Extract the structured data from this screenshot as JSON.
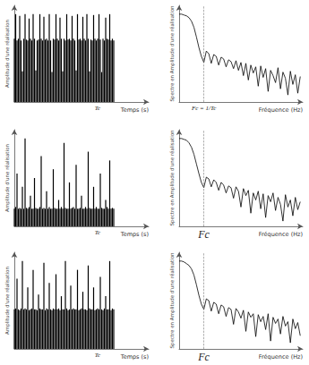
{
  "chart_data": [
    {
      "type": "bar",
      "color": "#000000",
      "xlabel": "Temps (s)",
      "ylabel": "Amplitude d'une réalisation",
      "xlim": [
        0,
        100
      ],
      "ylim": [
        0,
        1.1
      ],
      "xticks": [
        {
          "value": 62,
          "label": "Tc"
        }
      ],
      "tick_labels": "x",
      "grid": false,
      "values": [
        0.72,
        1.0,
        0.7,
        0.72,
        0.98,
        0.7,
        0.35,
        0.72,
        1.0,
        0.71,
        0.7,
        0.95,
        0.72,
        0.7,
        1.0,
        0.72,
        0.36,
        0.7,
        0.71,
        1.0,
        0.72,
        0.7,
        0.97,
        0.71,
        0.72,
        0.7,
        1.0,
        0.7,
        0.34,
        0.72,
        0.71,
        1.0,
        0.72,
        0.7,
        0.96,
        0.72,
        0.35,
        0.72,
        0.7,
        1.0,
        0.71,
        0.72,
        0.7,
        0.98,
        0.72,
        0.7,
        0.36,
        1.0,
        0.71,
        0.72,
        0.7,
        0.97,
        0.72,
        0.7,
        1.0,
        0.72,
        0.35,
        0.71,
        0.7,
        0.99,
        0.72,
        0.7,
        0.72,
        1.0,
        0.71,
        0.34,
        0.72,
        0.7,
        0.96,
        0.72,
        0.71,
        1.0,
        0.7,
        0.72,
        0.7
      ]
    },
    {
      "type": "line",
      "color": "#000000",
      "xlabel": "Fréquence (Hz)",
      "ylabel": "Spectre en Amplitude d'une réalisation",
      "xlim": [
        0,
        50
      ],
      "ylim": [
        0,
        1.1
      ],
      "xticks": [
        {
          "value": 10,
          "label": "Fc = 1/Tc"
        }
      ],
      "tick_labels": "x",
      "grid": false,
      "values": [
        1.0,
        1.0,
        0.99,
        0.98,
        0.96,
        0.92,
        0.85,
        0.74,
        0.62,
        0.52,
        0.45,
        0.58,
        0.55,
        0.44,
        0.54,
        0.52,
        0.42,
        0.51,
        0.49,
        0.4,
        0.48,
        0.46,
        0.38,
        0.47,
        0.36,
        0.45,
        0.3,
        0.44,
        0.25,
        0.42,
        0.33,
        0.4,
        0.18,
        0.41,
        0.28,
        0.38,
        0.12,
        0.36,
        0.3,
        0.22,
        0.39,
        0.15,
        0.34,
        0.27,
        0.08,
        0.35,
        0.2,
        0.31,
        0.1,
        0.29
      ]
    },
    {
      "type": "bar",
      "color": "#000000",
      "xlabel": "Temps (s)",
      "ylabel": "Amplitude d'une réalisation",
      "xlim": [
        0,
        100
      ],
      "ylim": [
        0,
        1.1
      ],
      "xticks": [
        {
          "value": 62,
          "label": "Tc"
        }
      ],
      "tick_labels": "x",
      "grid": false,
      "values": [
        0.2,
        0.22,
        0.6,
        0.2,
        0.21,
        0.2,
        0.45,
        0.2,
        1.0,
        0.21,
        0.2,
        0.22,
        0.35,
        0.2,
        0.2,
        0.55,
        0.21,
        0.2,
        0.2,
        0.22,
        0.8,
        0.2,
        0.21,
        0.2,
        0.4,
        0.2,
        0.22,
        0.2,
        0.2,
        0.65,
        0.21,
        0.2,
        0.2,
        0.3,
        0.2,
        0.22,
        0.2,
        0.95,
        0.21,
        0.2,
        0.2,
        0.5,
        0.2,
        0.21,
        0.22,
        0.2,
        0.7,
        0.2,
        0.2,
        0.21,
        0.35,
        0.2,
        0.2,
        0.22,
        0.2,
        0.85,
        0.21,
        0.2,
        0.2,
        0.45,
        0.2,
        0.22,
        0.2,
        0.2,
        0.6,
        0.21,
        0.2,
        0.2,
        0.3,
        0.22,
        0.2,
        0.75,
        0.2,
        0.21,
        0.2
      ]
    },
    {
      "type": "line",
      "color": "#000000",
      "xlabel": "Fréquence (Hz)",
      "ylabel": "Spectre en Amplitude d'une réalisation",
      "xlim": [
        0,
        50
      ],
      "ylim": [
        0,
        1.1
      ],
      "xticks": [
        {
          "value": 10,
          "label": "Fc"
        }
      ],
      "tick_labels": "x",
      "grid": false,
      "values": [
        1.0,
        1.0,
        0.99,
        0.98,
        0.95,
        0.9,
        0.82,
        0.71,
        0.6,
        0.5,
        0.44,
        0.56,
        0.54,
        0.45,
        0.53,
        0.5,
        0.41,
        0.5,
        0.47,
        0.38,
        0.46,
        0.44,
        0.32,
        0.45,
        0.4,
        0.22,
        0.43,
        0.35,
        0.41,
        0.15,
        0.38,
        0.3,
        0.4,
        0.2,
        0.37,
        0.1,
        0.35,
        0.28,
        0.38,
        0.18,
        0.33,
        0.25,
        0.06,
        0.36,
        0.22,
        0.3,
        0.12,
        0.33,
        0.19,
        0.28
      ]
    },
    {
      "type": "bar",
      "color": "#000000",
      "xlabel": "Temps (s)",
      "ylabel": "Amplitude d'une réalisation",
      "xlim": [
        0,
        100
      ],
      "ylim": [
        0,
        1.1
      ],
      "xticks": [
        {
          "value": 62,
          "label": "Tc"
        }
      ],
      "tick_labels": "x",
      "grid": false,
      "values": [
        0.45,
        0.46,
        0.8,
        0.45,
        0.44,
        0.46,
        1.0,
        0.45,
        0.46,
        0.45,
        0.7,
        0.44,
        0.45,
        0.46,
        0.9,
        0.45,
        0.45,
        0.44,
        0.62,
        0.46,
        0.45,
        0.45,
        0.98,
        0.44,
        0.46,
        0.45,
        0.75,
        0.45,
        0.44,
        0.46,
        0.45,
        0.85,
        0.45,
        0.46,
        0.44,
        0.6,
        0.45,
        0.45,
        1.0,
        0.46,
        0.44,
        0.45,
        0.72,
        0.45,
        0.46,
        0.45,
        0.45,
        0.9,
        0.44,
        0.45,
        0.46,
        0.65,
        0.45,
        0.45,
        0.44,
        0.95,
        0.46,
        0.45,
        0.45,
        0.7,
        0.44,
        0.45,
        0.46,
        0.45,
        0.82,
        0.45,
        0.44,
        0.46,
        0.6,
        0.45,
        0.45,
        1.0,
        0.44,
        0.46,
        0.45
      ]
    },
    {
      "type": "line",
      "color": "#000000",
      "xlabel": "Fréquence (Hz)",
      "ylabel": "Spectre en Amplitude d'une réalisation",
      "xlim": [
        0,
        50
      ],
      "ylim": [
        0,
        1.1
      ],
      "xticks": [
        {
          "value": 10,
          "label": "Fc"
        }
      ],
      "tick_labels": "x",
      "grid": false,
      "values": [
        1.0,
        1.0,
        0.99,
        0.97,
        0.95,
        0.91,
        0.84,
        0.73,
        0.61,
        0.51,
        0.45,
        0.57,
        0.55,
        0.43,
        0.53,
        0.51,
        0.4,
        0.5,
        0.48,
        0.37,
        0.47,
        0.45,
        0.28,
        0.46,
        0.42,
        0.35,
        0.44,
        0.2,
        0.42,
        0.36,
        0.4,
        0.14,
        0.39,
        0.31,
        0.37,
        0.22,
        0.4,
        0.09,
        0.36,
        0.29,
        0.34,
        0.17,
        0.37,
        0.26,
        0.31,
        0.07,
        0.34,
        0.23,
        0.3,
        0.15
      ]
    }
  ]
}
